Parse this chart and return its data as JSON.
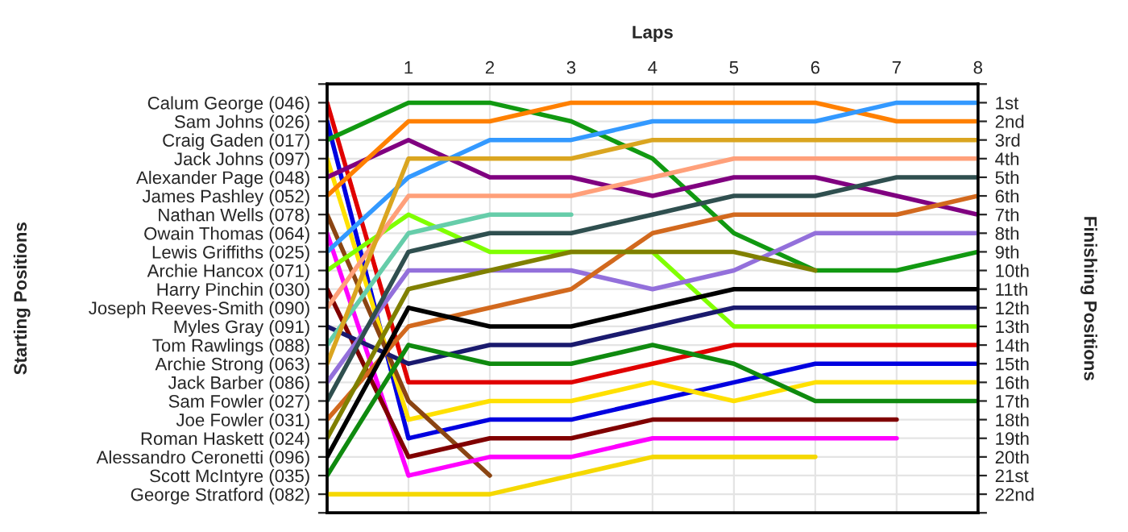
{
  "chart_data": {
    "type": "line",
    "xlabel": "Laps",
    "y2label": "Finishing Positions",
    "x": [
      0,
      1,
      2,
      3,
      4,
      5,
      6,
      7,
      8
    ],
    "xlim": [
      0,
      8
    ],
    "xticks": [
      1,
      2,
      3,
      4,
      5,
      6,
      7,
      8
    ],
    "y2lim": [
      23,
      0
    ],
    "y2ticks": [
      {
        "value": 0,
        "label": null
      },
      {
        "value": 1,
        "label": "1st"
      },
      {
        "value": 2,
        "label": "2nd"
      },
      {
        "value": 3,
        "label": "3rd"
      },
      {
        "value": 4,
        "label": "4th"
      },
      {
        "value": 5,
        "label": "5th"
      },
      {
        "value": 6,
        "label": "6th"
      },
      {
        "value": 7,
        "label": "7th"
      },
      {
        "value": 8,
        "label": "8th"
      },
      {
        "value": 9,
        "label": "9th"
      },
      {
        "value": 10,
        "label": "10th"
      },
      {
        "value": 11,
        "label": "11th"
      },
      {
        "value": 12,
        "label": "12th"
      },
      {
        "value": 13,
        "label": "13th"
      },
      {
        "value": 14,
        "label": "14th"
      },
      {
        "value": 15,
        "label": "15th"
      },
      {
        "value": 16,
        "label": "16th"
      },
      {
        "value": 17,
        "label": "17th"
      },
      {
        "value": 18,
        "label": "18th"
      },
      {
        "value": 19,
        "label": "19th"
      },
      {
        "value": 20,
        "label": "20th"
      },
      {
        "value": 21,
        "label": "21st"
      },
      {
        "value": 22,
        "label": "22nd"
      },
      {
        "value": 23,
        "label": null
      }
    ],
    "annotations": [
      "Calum George (046)",
      "Sam Johns (026)",
      "Craig Gaden (017)",
      "Jack Johns (097)",
      "Alexander Page (048)",
      "James Pashley (052)",
      "Nathan Wells (078)",
      "Owain Thomas (064)",
      "Lewis Griffiths (025)",
      "Archie Hancox (071)",
      "Harry Pinchin (030)",
      "Joseph Reeves-Smith (090)",
      "Myles Gray (091)",
      "Tom Rawlings (088)",
      "Archie Strong (063)",
      "Jack Barber (086)",
      "Sam Fowler (027)",
      "Joe Fowler (031)",
      "Roman Haskett (024)",
      "Alessandro Ceronetti (096)",
      "Scott McIntyre (035)",
      "George Stratford (082)",
      "Starting Positions"
    ],
    "grid": true,
    "line_style": "solid",
    "series": [
      {
        "axis": "y2",
        "color": "#e00000",
        "values": [
          1,
          16,
          16,
          16,
          15,
          14,
          14,
          14,
          14
        ]
      },
      {
        "axis": "y2",
        "color": "#0000e0",
        "values": [
          2,
          19,
          18,
          18,
          17,
          16,
          15,
          15,
          15
        ]
      },
      {
        "axis": "y2",
        "color": "#119911",
        "values": [
          3,
          1,
          1,
          2,
          4,
          8,
          10,
          10,
          9
        ]
      },
      {
        "axis": "y2",
        "color": "#ffe000",
        "values": [
          4,
          18,
          17,
          17,
          16,
          17,
          16,
          16,
          16
        ]
      },
      {
        "axis": "y2",
        "color": "#800080",
        "values": [
          5,
          3,
          5,
          5,
          6,
          5,
          5,
          6,
          7
        ]
      },
      {
        "axis": "y2",
        "color": "#ff8000",
        "values": [
          6,
          2,
          2,
          1,
          1,
          1,
          1,
          2,
          2
        ]
      },
      {
        "axis": "y2",
        "color": "#8b4513",
        "values": [
          7,
          17,
          21,
          null,
          null,
          null,
          null,
          null,
          null
        ]
      },
      {
        "axis": "y2",
        "color": "#ff00ff",
        "values": [
          8,
          21,
          20,
          20,
          19,
          19,
          19,
          19,
          null
        ]
      },
      {
        "axis": "y2",
        "color": "#3399ff",
        "values": [
          9,
          5,
          3,
          3,
          2,
          2,
          2,
          1,
          1
        ]
      },
      {
        "axis": "y2",
        "color": "#80ff00",
        "values": [
          10,
          7,
          9,
          9,
          9,
          13,
          13,
          13,
          13
        ]
      },
      {
        "axis": "y2",
        "color": "#800000",
        "values": [
          11,
          20,
          19,
          19,
          18,
          18,
          18,
          18,
          null
        ]
      },
      {
        "axis": "y2",
        "color": "#ffa07a",
        "values": [
          12,
          6,
          6,
          6,
          5,
          4,
          4,
          4,
          4
        ]
      },
      {
        "axis": "y2",
        "color": "#1a1a6e",
        "values": [
          13,
          15,
          14,
          14,
          13,
          12,
          12,
          12,
          12
        ]
      },
      {
        "axis": "y2",
        "color": "#66cdaa",
        "values": [
          14,
          8,
          7,
          7,
          null,
          null,
          null,
          null,
          null
        ]
      },
      {
        "axis": "y2",
        "color": "#daa520",
        "values": [
          15,
          4,
          4,
          4,
          3,
          3,
          3,
          3,
          3
        ]
      },
      {
        "axis": "y2",
        "color": "#9370db",
        "values": [
          16,
          10,
          10,
          10,
          11,
          10,
          8,
          8,
          8
        ]
      },
      {
        "axis": "y2",
        "color": "#2f4f4f",
        "values": [
          17,
          9,
          8,
          8,
          7,
          6,
          6,
          5,
          5
        ]
      },
      {
        "axis": "y2",
        "color": "#d2691e",
        "values": [
          18,
          13,
          12,
          11,
          8,
          7,
          7,
          7,
          6
        ]
      },
      {
        "axis": "y2",
        "color": "#808000",
        "values": [
          19,
          11,
          10,
          9,
          9,
          9,
          10,
          null,
          null
        ]
      },
      {
        "axis": "y2",
        "color": "#000000",
        "values": [
          20,
          12,
          13,
          13,
          12,
          11,
          11,
          11,
          11
        ]
      },
      {
        "axis": "y2",
        "color": "#0f8a0f",
        "values": [
          21,
          14,
          15,
          15,
          14,
          15,
          17,
          17,
          17
        ]
      },
      {
        "axis": "y2",
        "color": "#f5d800",
        "values": [
          22,
          22,
          22,
          21,
          20,
          20,
          20,
          null,
          null
        ]
      }
    ]
  }
}
